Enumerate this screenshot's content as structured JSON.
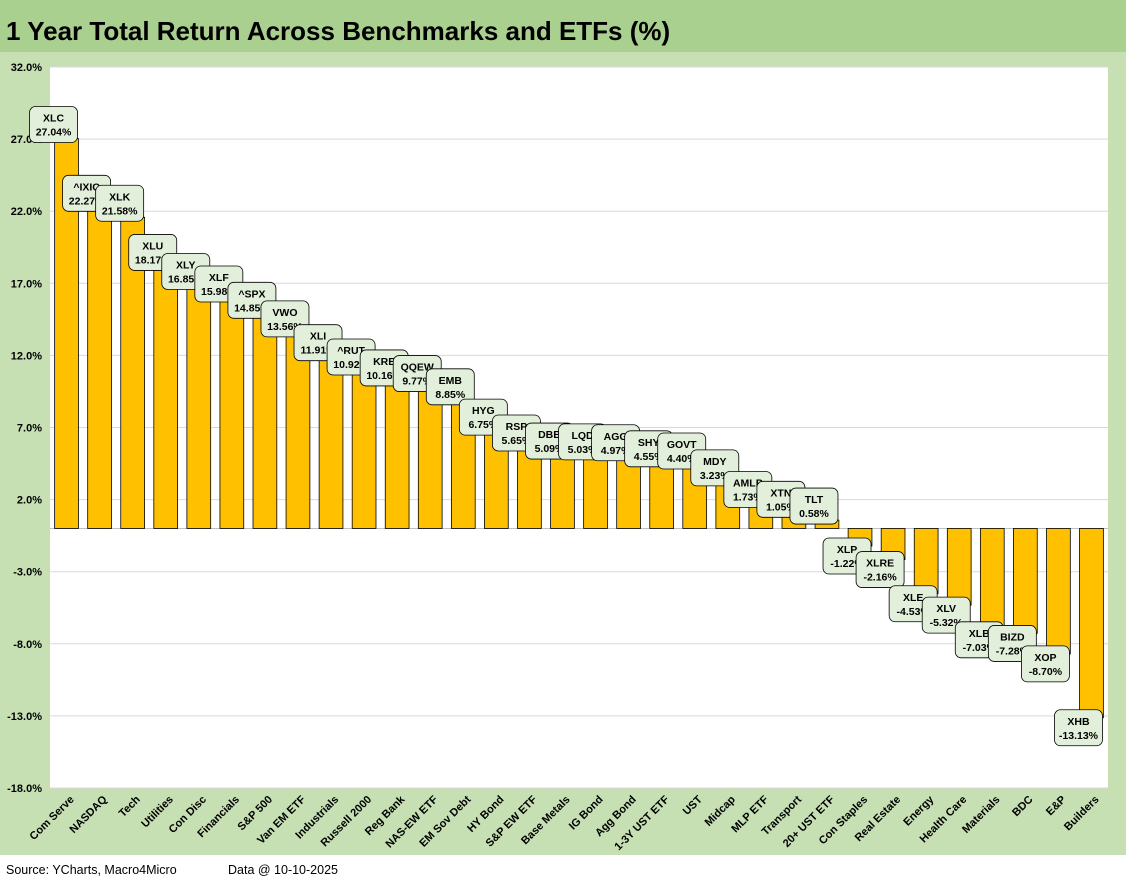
{
  "title": "1 Year Total Return Across Benchmarks and ETFs (%)",
  "footer": {
    "source": "Source: YCharts, Macro4Micro",
    "date": "Data @ 10-10-2025"
  },
  "colors": {
    "title_bg": "#a9d08e",
    "chart_bg": "#c6e0b4",
    "plot_bg": "#ffffff",
    "bar": "#ffc000",
    "bar_border": "#000000",
    "label_bg": "#e2efda",
    "gridline": "#d9d9d9"
  },
  "chart_data": {
    "type": "bar",
    "title": "1 Year Total Return Across Benchmarks and ETFs (%)",
    "categories": [
      "Com Serve",
      "NASDAQ",
      "Tech",
      "Utilities",
      "Con Disc",
      "Financials",
      "S&P 500",
      "Van EM ETF",
      "Industrials",
      "Russell 2000",
      "Reg Bank",
      "NAS-EW ETF",
      "EM Sov Debt",
      "HY Bond",
      "S&P EW ETF",
      "Base Metals",
      "IG Bond",
      "Agg Bond",
      "1-3Y UST ETF",
      "UST",
      "Midcap",
      "MLP ETF",
      "Transport",
      "20+ UST ETF",
      "Con Staples",
      "Real Estate",
      "Energy",
      "Health Care",
      "Materials",
      "BDC",
      "E&P",
      "Builders"
    ],
    "tickers": [
      "XLC",
      "^IXIC",
      "XLK",
      "XLU",
      "XLY",
      "XLF",
      "^SPX",
      "VWO",
      "XLI",
      "^RUT",
      "KRE",
      "QQEW",
      "EMB",
      "HYG",
      "RSP",
      "DBB",
      "LQD",
      "AGG",
      "SHY",
      "GOVT",
      "MDY",
      "AMLP",
      "XTN",
      "TLT",
      "XLP",
      "XLRE",
      "XLE",
      "XLV",
      "XLB",
      "BIZD",
      "XOP",
      "XHB"
    ],
    "values": [
      27.04,
      22.27,
      21.58,
      18.17,
      16.85,
      15.98,
      14.85,
      13.56,
      11.91,
      10.92,
      10.16,
      9.77,
      8.85,
      6.75,
      5.65,
      5.09,
      5.03,
      4.97,
      4.55,
      4.4,
      3.23,
      1.73,
      1.05,
      0.58,
      -1.22,
      -2.16,
      -4.53,
      -5.32,
      -7.03,
      -7.28,
      -8.7,
      -13.13
    ],
    "data_labels": [
      "27.04%",
      "22.27%",
      "21.58%",
      "18.17%",
      "16.85%",
      "15.98%",
      "14.85%",
      "13.56%",
      "11.91%",
      "10.92%",
      "10.16%",
      "9.77%",
      "8.85%",
      "6.75%",
      "5.65%",
      "5.09%",
      "5.03%",
      "4.97%",
      "4.55%",
      "4.40%",
      "3.23%",
      "1.73%",
      "1.05%",
      "0.58%",
      "-1.22%",
      "-2.16%",
      "-4.53%",
      "-5.32%",
      "-7.03%",
      "-7.28%",
      "-8.70%",
      "-13.13%"
    ],
    "yticks": [
      "32.0%",
      "27.0%",
      "22.0%",
      "17.0%",
      "12.0%",
      "7.0%",
      "2.0%",
      "-3.0%",
      "-8.0%",
      "-13.0%",
      "-18.0%"
    ],
    "ytick_values": [
      32,
      27,
      22,
      17,
      12,
      7,
      2,
      -3,
      -8,
      -13,
      -18
    ],
    "ylim": [
      -18,
      32
    ],
    "xlabel": "",
    "ylabel": "",
    "grid": true,
    "legend": false
  }
}
